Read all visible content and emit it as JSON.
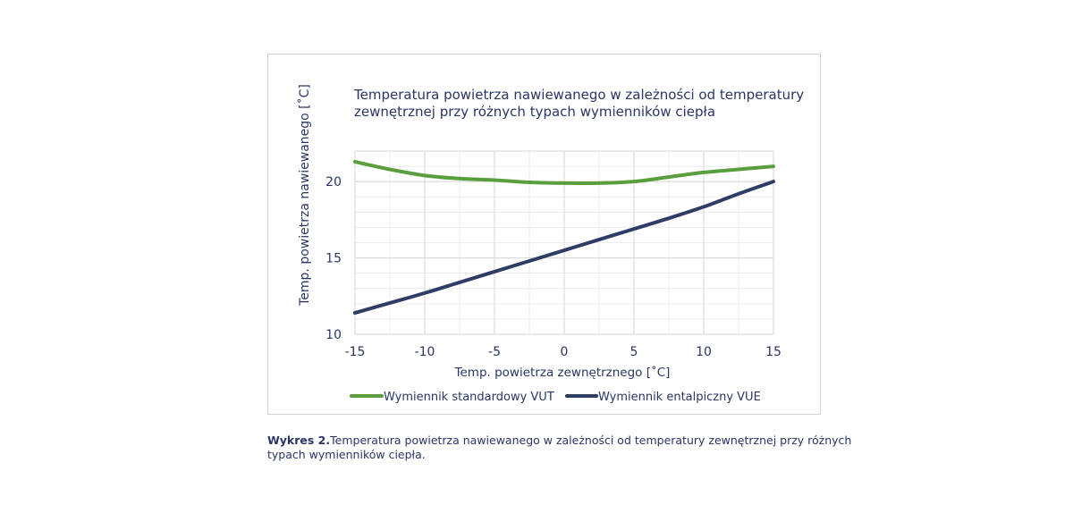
{
  "chart_data": {
    "type": "line",
    "title": [
      "Temperatura powietrza nawiewanego w zależności od temperatury",
      "zewnętrznej przy różnych typach wymienników ciepła"
    ],
    "xlabel": "Temp. powietrza zewnętrznego [˚C]",
    "ylabel": "Temp. powietrza nawiewanego [˚C]",
    "xlim": [
      -15,
      15
    ],
    "ylim": [
      10,
      22
    ],
    "xticks": [
      -15,
      -10,
      -5,
      0,
      5,
      10,
      15
    ],
    "xtick_labels": [
      "-15",
      "-10",
      "-5",
      "0",
      "5",
      "10",
      "15"
    ],
    "yticks": [
      10,
      15,
      20
    ],
    "ytick_labels": [
      "10",
      "15",
      "20"
    ],
    "grid": true,
    "legend_position": "bottom",
    "series": [
      {
        "name": "Wymiennik standardowy VUT",
        "color": "#5a9f3e",
        "x": [
          -15,
          -12.5,
          -10,
          -7.5,
          -5,
          -2.5,
          0,
          2.5,
          5,
          7.5,
          10,
          12.5,
          15
        ],
        "y": [
          21.3,
          20.8,
          20.4,
          20.2,
          20.1,
          19.95,
          19.9,
          19.9,
          20.0,
          20.3,
          20.6,
          20.8,
          21.0
        ]
      },
      {
        "name": "Wymiennik entalpiczny VUE",
        "color": "#2f3c66",
        "x": [
          -15,
          -12.5,
          -10,
          -7.5,
          -5,
          -2.5,
          0,
          2.5,
          5,
          7.5,
          10,
          12.5,
          15
        ],
        "y": [
          11.4,
          12.05,
          12.7,
          13.4,
          14.1,
          14.8,
          15.5,
          16.2,
          16.9,
          17.6,
          18.35,
          19.2,
          20.0
        ]
      }
    ]
  },
  "caption": {
    "label": "Wykres 2.",
    "text": "Temperatura powietrza nawiewanego w zależności od temperatury zewnętrznej przy różnych typach wymienników ciepła."
  }
}
